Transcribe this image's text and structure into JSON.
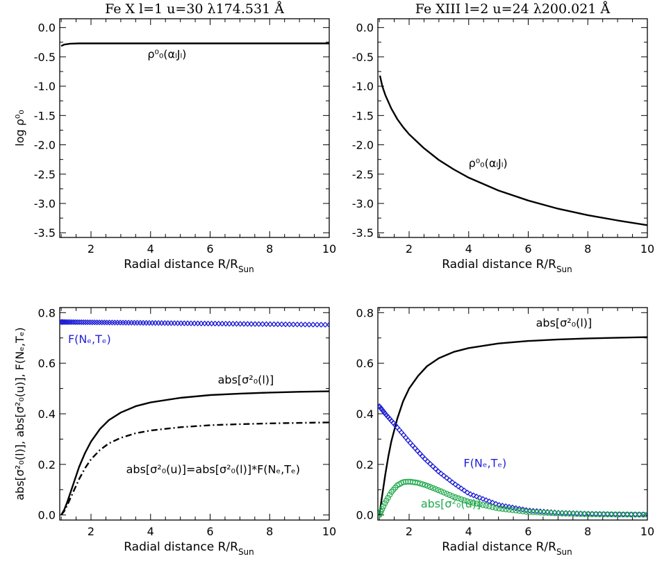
{
  "figure": {
    "shared_x": {
      "xlabel_main": "Radial distance R/R",
      "xlabel_sub": "Sun",
      "xticks": [
        2,
        4,
        6,
        8,
        10
      ]
    }
  },
  "chart_data": [
    {
      "type": "line",
      "panel": "top-left",
      "title": "Fe X  l=1  u=30    λ174.531 Å",
      "ylabel": "log ρ⁰₀",
      "xlim": [
        0.95,
        10
      ],
      "ylim": [
        -3.58,
        0.15
      ],
      "yticks": [
        0.0,
        -0.5,
        -1.0,
        -1.5,
        -2.0,
        -2.5,
        -3.0,
        -3.5
      ],
      "ytick_labels": [
        "0.0",
        "-0.5",
        "-1.0",
        "-1.5",
        "-2.0",
        "-2.5",
        "-3.0",
        "-3.5"
      ],
      "series": [
        {
          "name": "ρ0_0(αlJl)",
          "style": "solid",
          "color": "#000000",
          "x": [
            1.0,
            1.1,
            1.3,
            1.6,
            2.0,
            3.0,
            4.0,
            6.0,
            8.0,
            10.0
          ],
          "y": [
            -0.315,
            -0.29,
            -0.275,
            -0.27,
            -0.27,
            -0.27,
            -0.27,
            -0.27,
            -0.27,
            -0.27
          ]
        }
      ],
      "annotations": [
        {
          "text": "ρ⁰₀(αₗJₗ)",
          "x": 4.55,
          "y": -0.52
        }
      ]
    },
    {
      "type": "line",
      "panel": "top-right",
      "title": "Fe XIII  l=2  u=24    λ200.021 Å",
      "ylabel": "",
      "xlim": [
        0.95,
        10
      ],
      "ylim": [
        -3.58,
        0.15
      ],
      "yticks": [
        0.0,
        -0.5,
        -1.0,
        -1.5,
        -2.0,
        -2.5,
        -3.0,
        -3.5
      ],
      "ytick_labels": [
        "0.0",
        "-0.5",
        "-1.0",
        "-1.5",
        "-2.0",
        "-2.5",
        "-3.0",
        "-3.5"
      ],
      "series": [
        {
          "name": "ρ0_0(αlJl)",
          "style": "solid",
          "color": "#000000",
          "x": [
            1.02,
            1.1,
            1.2,
            1.4,
            1.6,
            1.8,
            2.0,
            2.5,
            3.0,
            3.5,
            4.0,
            5.0,
            6.0,
            7.0,
            8.0,
            9.0,
            10.0
          ],
          "y": [
            -0.82,
            -1.0,
            -1.15,
            -1.38,
            -1.56,
            -1.7,
            -1.82,
            -2.06,
            -2.26,
            -2.42,
            -2.56,
            -2.78,
            -2.95,
            -3.09,
            -3.2,
            -3.29,
            -3.37
          ]
        }
      ],
      "annotations": [
        {
          "text": "ρ⁰₀(αₗJₗ)",
          "x": 4.65,
          "y": -2.38
        }
      ]
    },
    {
      "type": "line",
      "panel": "bottom-left",
      "title": "",
      "ylabel": "abs[σ²₀(l)], abs[σ²₀(u)], F(Nₑ,Tₑ)",
      "xlim": [
        0.95,
        10
      ],
      "ylim": [
        -0.02,
        0.82
      ],
      "yticks": [
        0.0,
        0.2,
        0.4,
        0.6,
        0.8
      ],
      "ytick_labels": [
        "0.0",
        "0.2",
        "0.4",
        "0.6",
        "0.8"
      ],
      "series": [
        {
          "name": "F(Ne,Te)",
          "style": "markers-diamond",
          "color": "#1f1fd6",
          "x_start": 1.0,
          "x_end": 10.0,
          "y_start": 0.763,
          "y_end": 0.752
        },
        {
          "name": "abs[σ2_0(l)]",
          "style": "solid",
          "color": "#000000",
          "x": [
            1.0,
            1.1,
            1.2,
            1.4,
            1.6,
            1.8,
            2.0,
            2.3,
            2.6,
            3.0,
            3.5,
            4.0,
            5.0,
            6.0,
            7.0,
            8.0,
            9.0,
            10.0
          ],
          "y": [
            0.0,
            0.02,
            0.05,
            0.12,
            0.19,
            0.245,
            0.29,
            0.34,
            0.375,
            0.405,
            0.43,
            0.445,
            0.463,
            0.474,
            0.48,
            0.484,
            0.487,
            0.489
          ]
        },
        {
          "name": "abs[σ2_0(u)]",
          "style": "dashdot",
          "color": "#000000",
          "x": [
            1.0,
            1.1,
            1.2,
            1.4,
            1.6,
            1.8,
            2.0,
            2.3,
            2.6,
            3.0,
            3.5,
            4.0,
            5.0,
            6.0,
            7.0,
            8.0,
            9.0,
            10.0
          ],
          "y": [
            0.0,
            0.015,
            0.038,
            0.09,
            0.142,
            0.185,
            0.22,
            0.257,
            0.283,
            0.305,
            0.323,
            0.334,
            0.347,
            0.355,
            0.359,
            0.362,
            0.364,
            0.366
          ]
        }
      ],
      "annotations": [
        {
          "text": "F(Nₑ,Tₑ)",
          "x": 1.95,
          "y": 0.68,
          "color": "#1f1fd6"
        },
        {
          "text": "abs[σ²₀(l)]",
          "x": 7.2,
          "y": 0.52
        },
        {
          "text": "abs[σ²₀(u)]=abs[σ²₀(l)]*F(Nₑ,Tₑ)",
          "x": 6.1,
          "y": 0.165
        }
      ]
    },
    {
      "type": "line",
      "panel": "bottom-right",
      "title": "",
      "ylabel": "",
      "xlim": [
        0.95,
        10
      ],
      "ylim": [
        -0.02,
        0.82
      ],
      "yticks": [
        0.0,
        0.2,
        0.4,
        0.6,
        0.8
      ],
      "ytick_labels": [
        "0.0",
        "0.2",
        "0.4",
        "0.6",
        "0.8"
      ],
      "series": [
        {
          "name": "abs[σ2_0(l)]",
          "style": "solid",
          "color": "#000000",
          "x": [
            1.0,
            1.1,
            1.2,
            1.3,
            1.4,
            1.6,
            1.8,
            2.0,
            2.3,
            2.6,
            3.0,
            3.5,
            4.0,
            5.0,
            6.0,
            7.0,
            8.0,
            9.0,
            10.0
          ],
          "y": [
            0.0,
            0.08,
            0.16,
            0.23,
            0.29,
            0.38,
            0.45,
            0.5,
            0.55,
            0.588,
            0.62,
            0.645,
            0.66,
            0.678,
            0.688,
            0.694,
            0.698,
            0.701,
            0.703
          ]
        },
        {
          "name": "F(Ne,Te)",
          "style": "markers-diamond",
          "color": "#1f1fd6",
          "x": [
            1.0,
            1.2,
            1.5,
            2.0,
            2.5,
            3.0,
            3.5,
            4.0,
            5.0,
            6.0,
            7.0,
            8.0,
            9.0,
            10.0
          ],
          "y": [
            0.43,
            0.4,
            0.36,
            0.29,
            0.225,
            0.17,
            0.125,
            0.085,
            0.04,
            0.018,
            0.009,
            0.005,
            0.003,
            0.002
          ]
        },
        {
          "name": "abs[σ2_0(u)]",
          "style": "markers-circle",
          "color": "#1fa84a",
          "x": [
            1.0,
            1.2,
            1.4,
            1.6,
            1.8,
            2.0,
            2.3,
            2.6,
            3.0,
            3.5,
            4.0,
            5.0,
            6.0,
            7.0,
            8.0,
            9.0,
            10.0
          ],
          "y": [
            0.0,
            0.05,
            0.09,
            0.117,
            0.13,
            0.132,
            0.127,
            0.116,
            0.097,
            0.072,
            0.052,
            0.026,
            0.012,
            0.006,
            0.003,
            0.002,
            0.001
          ]
        }
      ],
      "annotations": [
        {
          "text": "abs[σ²₀(l)]",
          "x": 7.2,
          "y": 0.745
        },
        {
          "text": "F(Nₑ,Tₑ)",
          "x": 4.55,
          "y": 0.19,
          "color": "#1f1fd6"
        },
        {
          "text": "abs[σ²₀(u)]",
          "x": 3.4,
          "y": 0.03,
          "color": "#1fa84a"
        }
      ]
    }
  ]
}
